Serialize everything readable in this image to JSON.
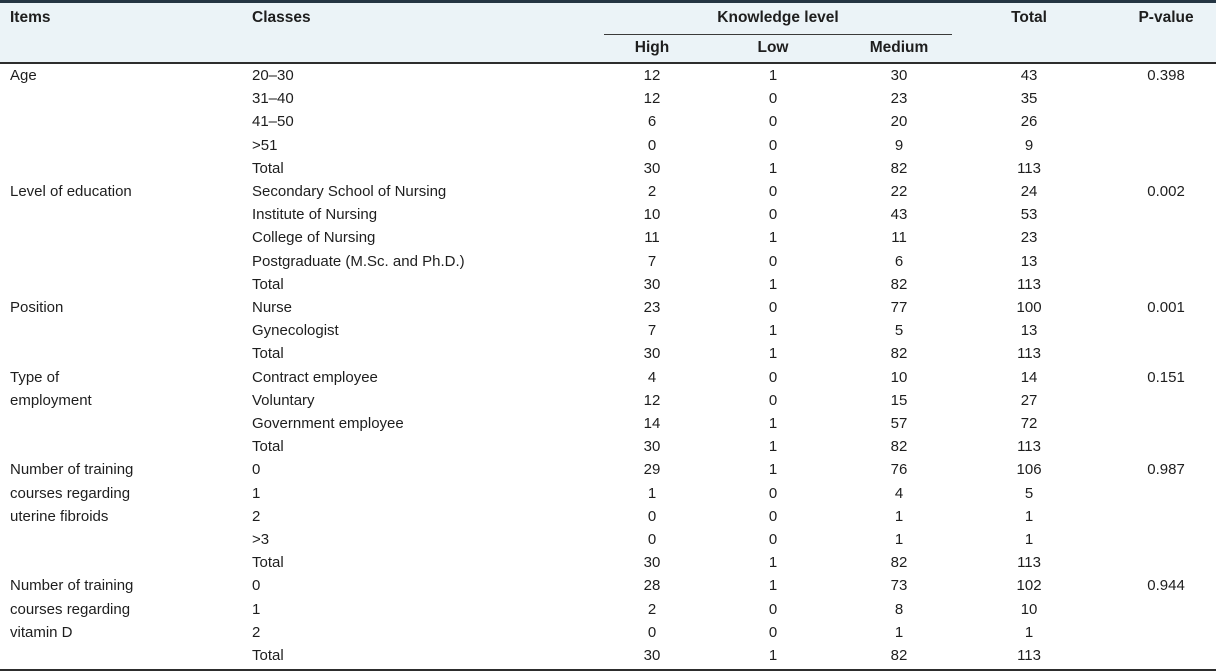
{
  "table": {
    "headers": {
      "items": "Items",
      "classes": "Classes",
      "knowledge_level": "Knowledge level",
      "sub": [
        "High",
        "Low",
        "Medium"
      ],
      "total": "Total",
      "p_value": "P-value"
    },
    "sections": [
      {
        "item": "Age",
        "rows": [
          {
            "class": "20–30",
            "high": "12",
            "low": "1",
            "medium": "30",
            "total": "43",
            "p": "0.398"
          },
          {
            "class": "31–40",
            "high": "12",
            "low": "0",
            "medium": "23",
            "total": "35"
          },
          {
            "class": "41–50",
            "high": "6",
            "low": "0",
            "medium": "20",
            "total": "26"
          },
          {
            "class": ">51",
            "high": "0",
            "low": "0",
            "medium": "9",
            "total": "9"
          },
          {
            "class": "Total",
            "high": "30",
            "low": "1",
            "medium": "82",
            "total": "113"
          }
        ]
      },
      {
        "item": "Level of education",
        "rows": [
          {
            "class": "Secondary School of Nursing",
            "high": "2",
            "low": "0",
            "medium": "22",
            "total": "24",
            "p": "0.002"
          },
          {
            "class": "Institute of Nursing",
            "high": "10",
            "low": "0",
            "medium": "43",
            "total": "53"
          },
          {
            "class": "College of Nursing",
            "high": "11",
            "low": "1",
            "medium": "11",
            "total": "23"
          },
          {
            "class": "Postgraduate (M.Sc. and Ph.D.)",
            "high": "7",
            "low": "0",
            "medium": "6",
            "total": "13"
          },
          {
            "class": "Total",
            "high": "30",
            "low": "1",
            "medium": "82",
            "total": "113"
          }
        ]
      },
      {
        "item": "Position",
        "rows": [
          {
            "class": "Nurse",
            "high": "23",
            "low": "0",
            "medium": "77",
            "total": "100",
            "p": "0.001"
          },
          {
            "class": "Gynecologist",
            "high": "7",
            "low": "1",
            "medium": "5",
            "total": "13"
          },
          {
            "class": "Total",
            "high": "30",
            "low": "1",
            "medium": "82",
            "total": "113"
          }
        ]
      },
      {
        "item": "Type of\nemployment",
        "rows": [
          {
            "class": "Contract employee",
            "high": "4",
            "low": "0",
            "medium": "10",
            "total": "14",
            "p": "0.151"
          },
          {
            "class": "Voluntary",
            "high": "12",
            "low": "0",
            "medium": "15",
            "total": "27"
          },
          {
            "class": "Government employee",
            "high": "14",
            "low": "1",
            "medium": "57",
            "total": "72"
          },
          {
            "class": "Total",
            "high": "30",
            "low": "1",
            "medium": "82",
            "total": "113"
          }
        ]
      },
      {
        "item": "Number of training\ncourses regarding\nuterine fibroids",
        "rows": [
          {
            "class": "0",
            "high": "29",
            "low": "1",
            "medium": "76",
            "total": "106",
            "p": "0.987"
          },
          {
            "class": "1",
            "high": "1",
            "low": "0",
            "medium": "4",
            "total": "5"
          },
          {
            "class": "2",
            "high": "0",
            "low": "0",
            "medium": "1",
            "total": "1"
          },
          {
            "class": ">3",
            "high": "0",
            "low": "0",
            "medium": "1",
            "total": "1"
          },
          {
            "class": "Total",
            "high": "30",
            "low": "1",
            "medium": "82",
            "total": "113"
          }
        ]
      },
      {
        "item": "Number of training\ncourses regarding\nvitamin D",
        "rows": [
          {
            "class": "0",
            "high": "28",
            "low": "1",
            "medium": "73",
            "total": "102",
            "p": "0.944"
          },
          {
            "class": "1",
            "high": "2",
            "low": "0",
            "medium": "8",
            "total": "10"
          },
          {
            "class": "2",
            "high": "0",
            "low": "0",
            "medium": "1",
            "total": "1"
          },
          {
            "class": "Total",
            "high": "30",
            "low": "1",
            "medium": "82",
            "total": "113"
          }
        ]
      }
    ]
  },
  "colors": {
    "header_background": "#ebf3f7",
    "top_border": "#243543",
    "rule": "#2d2d2d",
    "text": "#1e1e1e"
  }
}
